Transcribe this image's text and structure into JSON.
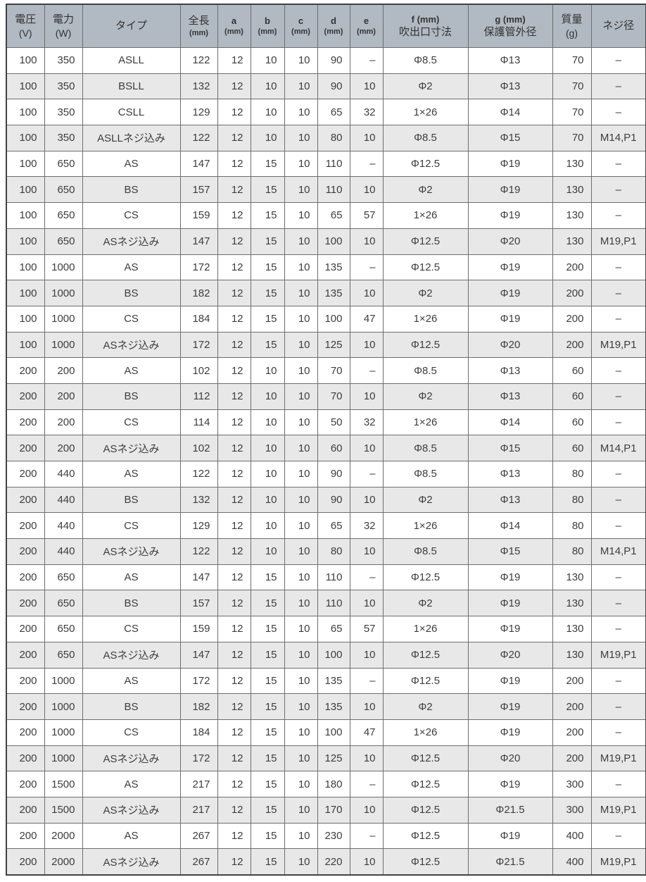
{
  "table": {
    "title": "heater-specification-table",
    "headers": [
      {
        "line1": "電圧",
        "line2": "(V)"
      },
      {
        "line1": "電力",
        "line2": "(W)"
      },
      {
        "line1": "タイプ",
        "line2": ""
      },
      {
        "line1": "全長",
        "line2": "(mm)"
      },
      {
        "line1": "a",
        "line2": "(mm)"
      },
      {
        "line1": "b",
        "line2": "(mm)"
      },
      {
        "line1": "c",
        "line2": "(mm)"
      },
      {
        "line1": "d",
        "line2": "(mm)"
      },
      {
        "line1": "e",
        "line2": "(mm)"
      },
      {
        "line1": "f (mm)",
        "line2": "吹出口寸法"
      },
      {
        "line1": "g (mm)",
        "line2": "保護管外径"
      },
      {
        "line1": "質量",
        "line2": "(g)"
      },
      {
        "line1": "ネジ径",
        "line2": ""
      }
    ],
    "column_align": [
      "num",
      "num",
      "txt",
      "num",
      "num",
      "num",
      "num",
      "num",
      "num",
      "txt",
      "txt",
      "num",
      "txt"
    ],
    "rows": [
      [
        "100",
        "350",
        "ASLL",
        "122",
        "12",
        "10",
        "10",
        "90",
        "–",
        "Φ8.5",
        "Φ13",
        "70",
        "–"
      ],
      [
        "100",
        "350",
        "BSLL",
        "132",
        "12",
        "10",
        "10",
        "90",
        "10",
        "Φ2",
        "Φ13",
        "70",
        "–"
      ],
      [
        "100",
        "350",
        "CSLL",
        "129",
        "12",
        "10",
        "10",
        "65",
        "32",
        "1×26",
        "Φ14",
        "70",
        "–"
      ],
      [
        "100",
        "350",
        "ASLLネジ込み",
        "122",
        "12",
        "10",
        "10",
        "80",
        "10",
        "Φ8.5",
        "Φ15",
        "70",
        "M14,P1"
      ],
      [
        "100",
        "650",
        "AS",
        "147",
        "12",
        "15",
        "10",
        "110",
        "–",
        "Φ12.5",
        "Φ19",
        "130",
        "–"
      ],
      [
        "100",
        "650",
        "BS",
        "157",
        "12",
        "15",
        "10",
        "110",
        "10",
        "Φ2",
        "Φ19",
        "130",
        "–"
      ],
      [
        "100",
        "650",
        "CS",
        "159",
        "12",
        "15",
        "10",
        "65",
        "57",
        "1×26",
        "Φ19",
        "130",
        "–"
      ],
      [
        "100",
        "650",
        "ASネジ込み",
        "147",
        "12",
        "15",
        "10",
        "100",
        "10",
        "Φ12.5",
        "Φ20",
        "130",
        "M19,P1"
      ],
      [
        "100",
        "1000",
        "AS",
        "172",
        "12",
        "15",
        "10",
        "135",
        "–",
        "Φ12.5",
        "Φ19",
        "200",
        "–"
      ],
      [
        "100",
        "1000",
        "BS",
        "182",
        "12",
        "15",
        "10",
        "135",
        "10",
        "Φ2",
        "Φ19",
        "200",
        "–"
      ],
      [
        "100",
        "1000",
        "CS",
        "184",
        "12",
        "15",
        "10",
        "100",
        "47",
        "1×26",
        "Φ19",
        "200",
        "–"
      ],
      [
        "100",
        "1000",
        "ASネジ込み",
        "172",
        "12",
        "15",
        "10",
        "125",
        "10",
        "Φ12.5",
        "Φ20",
        "200",
        "M19,P1"
      ],
      [
        "200",
        "200",
        "AS",
        "102",
        "12",
        "10",
        "10",
        "70",
        "–",
        "Φ8.5",
        "Φ13",
        "60",
        "–"
      ],
      [
        "200",
        "200",
        "BS",
        "112",
        "12",
        "10",
        "10",
        "70",
        "10",
        "Φ2",
        "Φ13",
        "60",
        "–"
      ],
      [
        "200",
        "200",
        "CS",
        "114",
        "12",
        "10",
        "10",
        "50",
        "32",
        "1×26",
        "Φ14",
        "60",
        "–"
      ],
      [
        "200",
        "200",
        "ASネジ込み",
        "102",
        "12",
        "10",
        "10",
        "60",
        "10",
        "Φ8.5",
        "Φ15",
        "60",
        "M14,P1"
      ],
      [
        "200",
        "440",
        "AS",
        "122",
        "12",
        "10",
        "10",
        "90",
        "–",
        "Φ8.5",
        "Φ13",
        "80",
        "–"
      ],
      [
        "200",
        "440",
        "BS",
        "132",
        "12",
        "10",
        "10",
        "90",
        "10",
        "Φ2",
        "Φ13",
        "80",
        "–"
      ],
      [
        "200",
        "440",
        "CS",
        "129",
        "12",
        "10",
        "10",
        "65",
        "32",
        "1×26",
        "Φ14",
        "80",
        "–"
      ],
      [
        "200",
        "440",
        "ASネジ込み",
        "122",
        "12",
        "10",
        "10",
        "80",
        "10",
        "Φ8.5",
        "Φ15",
        "80",
        "M14,P1"
      ],
      [
        "200",
        "650",
        "AS",
        "147",
        "12",
        "15",
        "10",
        "110",
        "–",
        "Φ12.5",
        "Φ19",
        "130",
        "–"
      ],
      [
        "200",
        "650",
        "BS",
        "157",
        "12",
        "15",
        "10",
        "110",
        "10",
        "Φ2",
        "Φ19",
        "130",
        "–"
      ],
      [
        "200",
        "650",
        "CS",
        "159",
        "12",
        "15",
        "10",
        "65",
        "57",
        "1×26",
        "Φ19",
        "130",
        "–"
      ],
      [
        "200",
        "650",
        "ASネジ込み",
        "147",
        "12",
        "15",
        "10",
        "100",
        "10",
        "Φ12.5",
        "Φ20",
        "130",
        "M19,P1"
      ],
      [
        "200",
        "1000",
        "AS",
        "172",
        "12",
        "15",
        "10",
        "135",
        "–",
        "Φ12.5",
        "Φ19",
        "200",
        "–"
      ],
      [
        "200",
        "1000",
        "BS",
        "182",
        "12",
        "15",
        "10",
        "135",
        "10",
        "Φ2",
        "Φ19",
        "200",
        "–"
      ],
      [
        "200",
        "1000",
        "CS",
        "184",
        "12",
        "15",
        "10",
        "100",
        "47",
        "1×26",
        "Φ19",
        "200",
        "–"
      ],
      [
        "200",
        "1000",
        "ASネジ込み",
        "172",
        "12",
        "15",
        "10",
        "125",
        "10",
        "Φ12.5",
        "Φ20",
        "200",
        "M19,P1"
      ],
      [
        "200",
        "1500",
        "AS",
        "217",
        "12",
        "15",
        "10",
        "180",
        "–",
        "Φ12.5",
        "Φ19",
        "300",
        "–"
      ],
      [
        "200",
        "1500",
        "ASネジ込み",
        "217",
        "12",
        "15",
        "10",
        "170",
        "10",
        "Φ12.5",
        "Φ21.5",
        "300",
        "M19,P1"
      ],
      [
        "200",
        "2000",
        "AS",
        "267",
        "12",
        "15",
        "10",
        "230",
        "–",
        "Φ12.5",
        "Φ19",
        "400",
        "–"
      ],
      [
        "200",
        "2000",
        "ASネジ込み",
        "267",
        "12",
        "15",
        "10",
        "220",
        "10",
        "Φ12.5",
        "Φ21.5",
        "400",
        "M19,P1"
      ]
    ],
    "colors": {
      "header_bg": "#b1b9c2",
      "stripe_bg": "#e8e8e8",
      "row_bg": "#ffffff",
      "border_inner": "#6e6e6e",
      "border_outer": "#424242",
      "text": "#3d3d3d"
    }
  }
}
